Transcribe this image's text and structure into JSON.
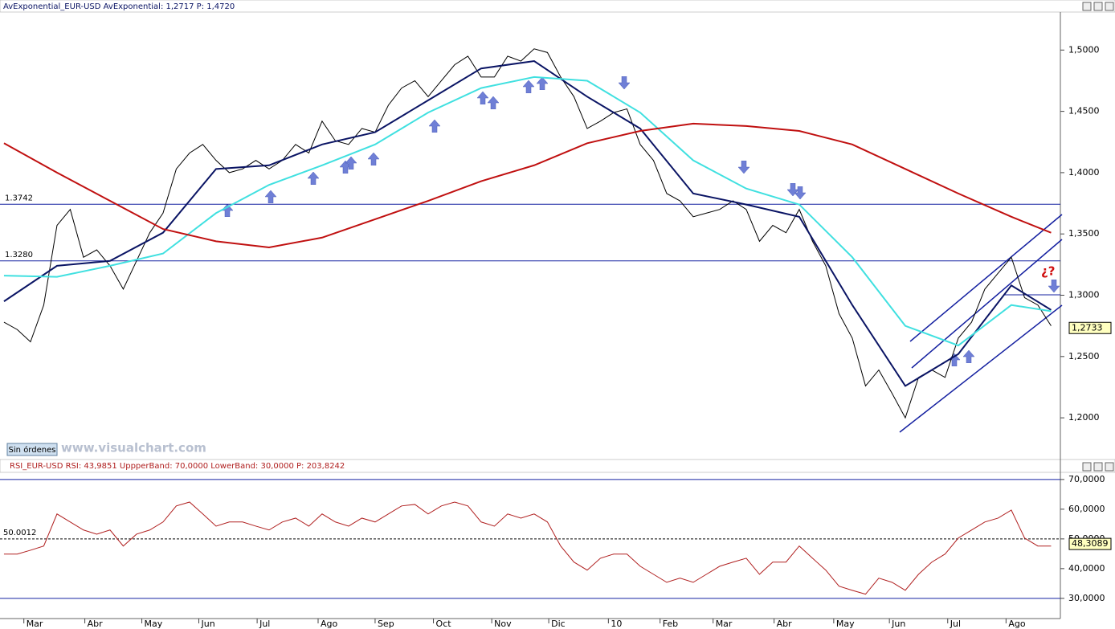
{
  "chart_data": [
    {
      "type": "line",
      "title": "AvExponential_EUR-USD  AvExponential: 1,2717  P: 1,4720",
      "xlim": [
        -0.3,
        79.7
      ],
      "ylim": [
        1.166,
        1.531
      ],
      "yticks": [
        {
          "value": 1.2,
          "label": "1,2000"
        },
        {
          "value": 1.25,
          "label": "1,2500"
        },
        {
          "value": 1.3,
          "label": "1,3000"
        },
        {
          "value": 1.35,
          "label": "1,3500"
        },
        {
          "value": 1.4,
          "label": "1,4000"
        },
        {
          "value": 1.45,
          "label": "1,4500"
        },
        {
          "value": 1.5,
          "label": "1,5000"
        }
      ],
      "hlines": [
        {
          "value": 1.3742,
          "label": "1.3742"
        },
        {
          "value": 1.328,
          "label": "1.3280"
        }
      ],
      "last_value": {
        "value": 1.2733,
        "label": "1,2733"
      },
      "annotation": "¿?",
      "series": [
        {
          "color": "#000000",
          "width": 1,
          "x": [
            0,
            1,
            2,
            3,
            4,
            5,
            6,
            7,
            8,
            9,
            10,
            11,
            12,
            13,
            14,
            15,
            16,
            17,
            18,
            19,
            20,
            21,
            22,
            23,
            24,
            25,
            26,
            27,
            28,
            29,
            30,
            31,
            32,
            33,
            34,
            35,
            36,
            37,
            38,
            39,
            40,
            41,
            42,
            43,
            44,
            45,
            46,
            47,
            48,
            49,
            50,
            51,
            52,
            53,
            54,
            55,
            56,
            57,
            58,
            59,
            60,
            61,
            62,
            63,
            64,
            65,
            66,
            67,
            68,
            69,
            70,
            71,
            72,
            73,
            74,
            75,
            76,
            77,
            78,
            79
          ],
          "values": [
            1.278,
            1.272,
            1.262,
            1.292,
            1.357,
            1.37,
            1.331,
            1.337,
            1.324,
            1.305,
            1.328,
            1.351,
            1.367,
            1.403,
            1.416,
            1.423,
            1.41,
            1.4,
            1.403,
            1.41,
            1.403,
            1.41,
            1.423,
            1.416,
            1.442,
            1.426,
            1.423,
            1.436,
            1.433,
            1.455,
            1.469,
            1.475,
            1.462,
            1.475,
            1.488,
            1.495,
            1.478,
            1.478,
            1.495,
            1.491,
            1.501,
            1.498,
            1.478,
            1.462,
            1.436,
            1.442,
            1.449,
            1.452,
            1.423,
            1.41,
            1.383,
            1.377,
            1.364,
            1.367,
            1.37,
            1.377,
            1.37,
            1.344,
            1.357,
            1.351,
            1.37,
            1.344,
            1.324,
            1.285,
            1.265,
            1.226,
            1.239,
            1.22,
            1.2,
            1.233,
            1.239,
            1.233,
            1.265,
            1.278,
            1.305,
            1.318,
            1.331,
            1.298,
            1.292,
            1.275
          ]
        },
        {
          "color": "#0a1464",
          "width": 2,
          "x": [
            0,
            4,
            8,
            12,
            16,
            20,
            24,
            28,
            32,
            36,
            40,
            44,
            48,
            52,
            56,
            60,
            64,
            68,
            72,
            76,
            79
          ],
          "values": [
            1.295,
            1.324,
            1.328,
            1.351,
            1.403,
            1.406,
            1.423,
            1.433,
            1.459,
            1.485,
            1.491,
            1.462,
            1.436,
            1.383,
            1.374,
            1.364,
            1.292,
            1.226,
            1.252,
            1.308,
            1.288
          ]
        },
        {
          "color": "#40e0e0",
          "width": 2,
          "x": [
            0,
            4,
            8,
            12,
            16,
            20,
            24,
            28,
            32,
            36,
            40,
            44,
            48,
            52,
            56,
            60,
            64,
            68,
            72,
            76,
            79
          ],
          "values": [
            1.316,
            1.315,
            1.324,
            1.334,
            1.367,
            1.39,
            1.406,
            1.423,
            1.449,
            1.469,
            1.478,
            1.475,
            1.449,
            1.41,
            1.387,
            1.374,
            1.331,
            1.275,
            1.259,
            1.292,
            1.287
          ]
        },
        {
          "color": "#c01010",
          "width": 2,
          "x": [
            0,
            4,
            8,
            12,
            16,
            20,
            24,
            28,
            32,
            36,
            40,
            44,
            48,
            52,
            56,
            60,
            64,
            68,
            72,
            76,
            79
          ],
          "values": [
            1.424,
            1.4,
            1.377,
            1.354,
            1.344,
            1.339,
            1.347,
            1.362,
            1.377,
            1.393,
            1.406,
            1.424,
            1.434,
            1.44,
            1.438,
            1.434,
            1.423,
            1.403,
            1.383,
            1.364,
            1.351
          ]
        }
      ]
    },
    {
      "type": "line",
      "title": "RSI_EUR-USD  RSI: 43,9851  UppperBand: 70,0000  LowerBand: 30,0000  P: 203,8242",
      "xlim": [
        -0.3,
        79.7
      ],
      "ylim": [
        23.2,
        72.4
      ],
      "yticks": [
        {
          "value": 30,
          "label": "30,0000"
        },
        {
          "value": 40,
          "label": "40,0000"
        },
        {
          "value": 50,
          "label": "50,0000"
        },
        {
          "value": 60,
          "label": "60,0000"
        },
        {
          "value": 70,
          "label": "70,0000"
        }
      ],
      "bands": [
        70,
        30
      ],
      "midline": {
        "value": 50.0012,
        "label": "50.0012"
      },
      "last_value": {
        "value": 48.3089,
        "label": "48,3089"
      },
      "xticks": [
        {
          "value": 1.5,
          "label": "Mar"
        },
        {
          "value": 6.1,
          "label": "Abr"
        },
        {
          "value": 10.4,
          "label": "May"
        },
        {
          "value": 14.7,
          "label": "Jun"
        },
        {
          "value": 19.1,
          "label": "Jul"
        },
        {
          "value": 23.7,
          "label": "Ago"
        },
        {
          "value": 28,
          "label": "Sep"
        },
        {
          "value": 32.4,
          "label": "Oct"
        },
        {
          "value": 36.8,
          "label": "Nov"
        },
        {
          "value": 41.1,
          "label": "Dic"
        },
        {
          "value": 45.6,
          "label": "10"
        },
        {
          "value": 49.5,
          "label": "Feb"
        },
        {
          "value": 53.5,
          "label": "Mar"
        },
        {
          "value": 58.1,
          "label": "Abr"
        },
        {
          "value": 62.6,
          "label": "May"
        },
        {
          "value": 66.8,
          "label": "Jun"
        },
        {
          "value": 71.2,
          "label": "Jul"
        },
        {
          "value": 75.6,
          "label": "Ago"
        }
      ],
      "series": [
        {
          "color": "#b02020",
          "width": 1,
          "x": [
            0,
            1,
            2,
            3,
            4,
            5,
            6,
            7,
            8,
            9,
            10,
            11,
            12,
            13,
            14,
            15,
            16,
            17,
            18,
            19,
            20,
            21,
            22,
            23,
            24,
            25,
            26,
            27,
            28,
            29,
            30,
            31,
            32,
            33,
            34,
            35,
            36,
            37,
            38,
            39,
            40,
            41,
            42,
            43,
            44,
            45,
            46,
            47,
            48,
            49,
            50,
            51,
            52,
            53,
            54,
            55,
            56,
            57,
            58,
            59,
            60,
            61,
            62,
            63,
            64,
            65,
            66,
            67,
            68,
            69,
            70,
            71,
            72,
            73,
            74,
            75,
            76,
            77,
            78,
            79
          ],
          "values": [
            44.9,
            44.9,
            46.2,
            47.6,
            58.4,
            55.7,
            53,
            51.6,
            53,
            47.6,
            51.6,
            53,
            55.7,
            61.1,
            62.4,
            58.4,
            54.3,
            55.7,
            55.7,
            54.3,
            53,
            55.7,
            57,
            54.3,
            58.4,
            55.7,
            54.3,
            57,
            55.7,
            58.4,
            61.1,
            61.6,
            58.4,
            61.1,
            62.4,
            61.1,
            55.7,
            54.3,
            58.4,
            57,
            58.4,
            55.7,
            47.6,
            42.2,
            39.5,
            43.5,
            44.9,
            44.9,
            40.8,
            38.1,
            35.4,
            36.8,
            35.4,
            38.1,
            40.8,
            42.2,
            43.5,
            38.1,
            42.2,
            42.2,
            47.6,
            43.5,
            39.5,
            34.1,
            32.7,
            31.4,
            36.8,
            35.4,
            32.7,
            38.1,
            42.2,
            44.9,
            50.3,
            53,
            55.7,
            57,
            59.7,
            50.3,
            47.6,
            47.6
          ]
        }
      ]
    }
  ],
  "ui": {
    "button": "Sin órdenes",
    "watermark": "www.visualchart.com"
  }
}
